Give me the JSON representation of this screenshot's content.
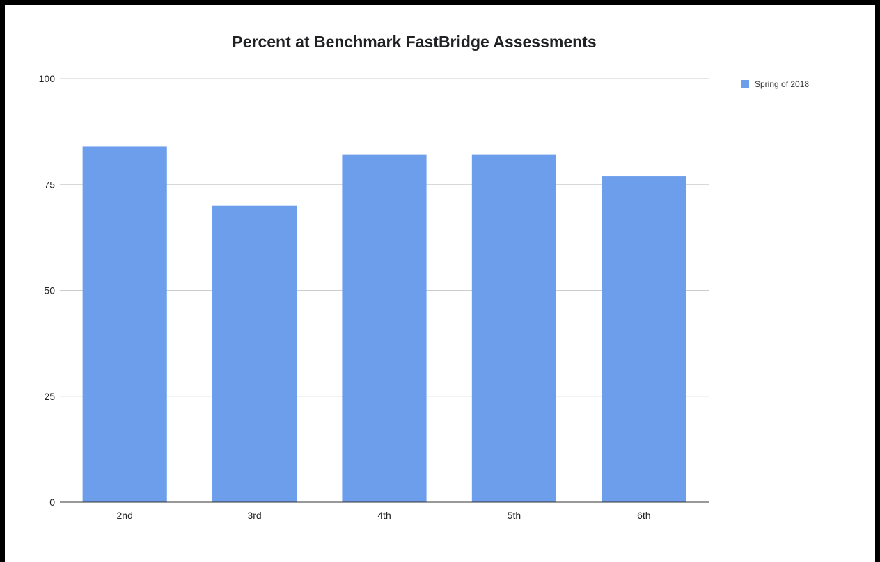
{
  "chart_data": {
    "type": "bar",
    "title": "Percent at Benchmark FastBridge Assessments",
    "xlabel": "",
    "ylabel": "",
    "categories": [
      "2nd",
      "3rd",
      "4th",
      "5th",
      "6th"
    ],
    "series": [
      {
        "name": "Spring of 2018",
        "values": [
          84,
          70,
          82,
          82,
          77
        ],
        "color": "#6d9eeb"
      }
    ],
    "ylim": [
      0,
      100
    ],
    "yticks": [
      0,
      25,
      50,
      75,
      100
    ],
    "grid": true,
    "legend_position": "right"
  }
}
